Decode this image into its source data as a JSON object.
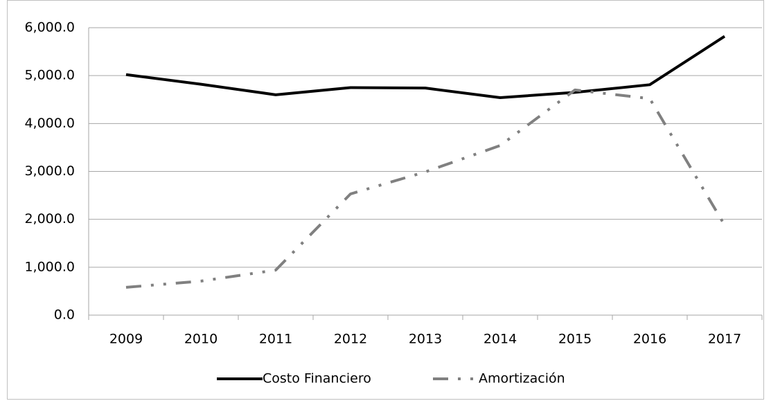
{
  "chart_data": {
    "type": "line",
    "categories": [
      "2009",
      "2010",
      "2011",
      "2012",
      "2013",
      "2014",
      "2015",
      "2016",
      "2017"
    ],
    "series": [
      {
        "name": "Costo Financiero",
        "color": "#000000",
        "values": [
          5020,
          4820,
          4600,
          4750,
          4740,
          4540,
          4650,
          4810,
          5820
        ]
      },
      {
        "name": "Amortización",
        "color": "#808080",
        "values": [
          580,
          710,
          940,
          2530,
          2990,
          3540,
          4700,
          4520,
          1880
        ]
      }
    ],
    "ylim": [
      0,
      6000
    ],
    "yticks": [
      {
        "value": 0,
        "label": "0.0"
      },
      {
        "value": 1000,
        "label": "1,000.0"
      },
      {
        "value": 2000,
        "label": "2,000.0"
      },
      {
        "value": 3000,
        "label": "3,000.0"
      },
      {
        "value": 4000,
        "label": "4,000.0"
      },
      {
        "value": 5000,
        "label": "5,000.0"
      },
      {
        "value": 6000,
        "label": "6,000.0"
      }
    ],
    "grid": true,
    "legend": "bottom"
  }
}
